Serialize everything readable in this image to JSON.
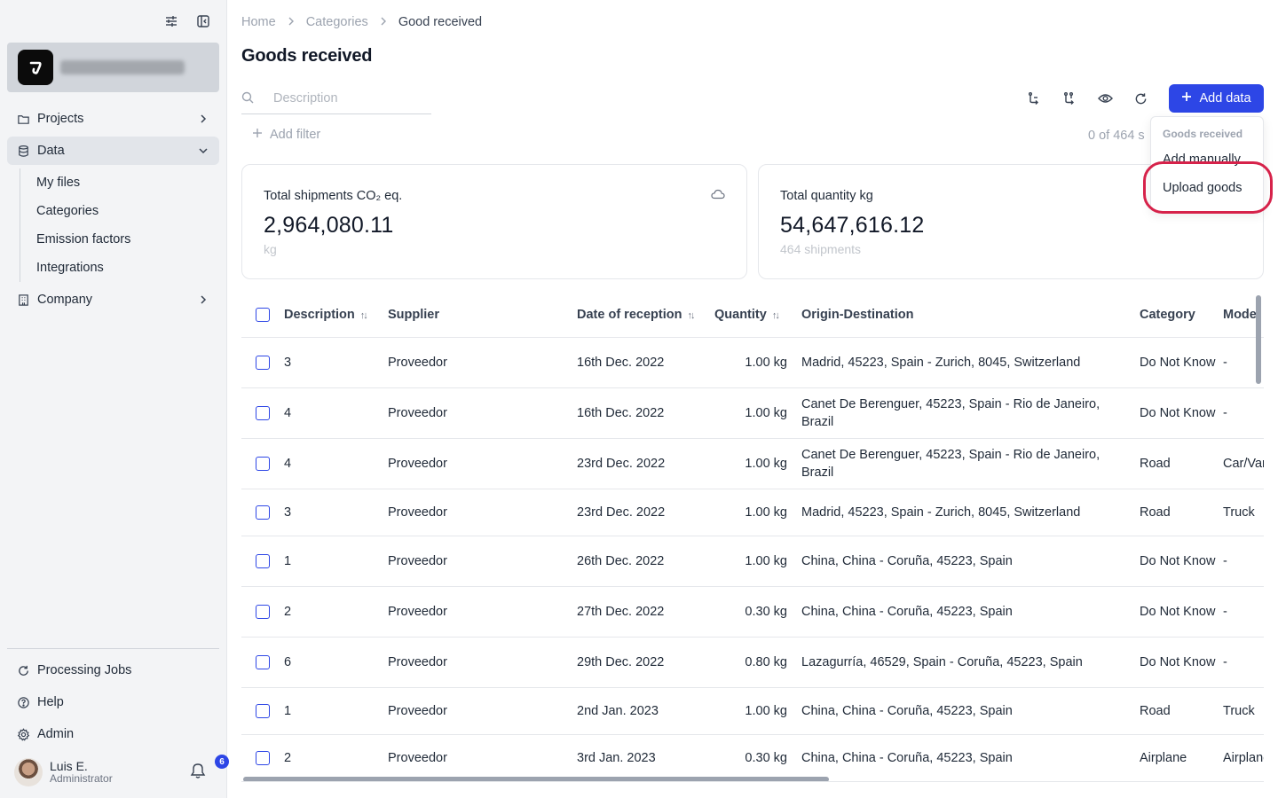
{
  "sidebar": {
    "nav": [
      {
        "label": "Projects",
        "icon": "folder-icon"
      },
      {
        "label": "Data",
        "icon": "database-icon"
      },
      {
        "label": "Company",
        "icon": "building-icon"
      }
    ],
    "data_sub": [
      "My files",
      "Categories",
      "Emission factors",
      "Integrations"
    ],
    "bottom": [
      {
        "label": "Processing Jobs",
        "icon": "refresh-icon"
      },
      {
        "label": "Help",
        "icon": "help-icon"
      },
      {
        "label": "Admin",
        "icon": "gear-icon"
      }
    ],
    "user": {
      "name": "Luis E.",
      "role": "Administrator",
      "notifications": "6"
    }
  },
  "breadcrumb": {
    "items": [
      "Home",
      "Categories",
      "Good received"
    ]
  },
  "page": {
    "title": "Goods received"
  },
  "search": {
    "placeholder": "Description"
  },
  "filters": {
    "add_label": "Add filter",
    "count_text": "0 of 464 s"
  },
  "toolbar": {
    "add_label": "Add data"
  },
  "dropdown": {
    "header": "Goods received",
    "items": [
      "Add manually",
      "Upload goods"
    ]
  },
  "cards": [
    {
      "label": "Total shipments CO₂ eq.",
      "value": "2,964,080.11",
      "sub": "kg"
    },
    {
      "label": "Total quantity kg",
      "value": "54,647,616.12",
      "sub": "464 shipments"
    }
  ],
  "table": {
    "columns": [
      "Description",
      "Supplier",
      "Date of reception",
      "Quantity",
      "Origin-Destination",
      "Category",
      "Mode"
    ],
    "rows": [
      [
        "3",
        "Proveedor",
        "16th Dec. 2022",
        "1.00 kg",
        "Madrid, 45223, Spain - Zurich, 8045, Switzerland",
        "Do Not Know",
        "-"
      ],
      [
        "4",
        "Proveedor",
        "16th Dec. 2022",
        "1.00 kg",
        "Canet De Berenguer, 45223, Spain - Rio de Janeiro, Brazil",
        "Do Not Know",
        "-"
      ],
      [
        "4",
        "Proveedor",
        "23rd Dec. 2022",
        "1.00 kg",
        "Canet De Berenguer, 45223, Spain - Rio de Janeiro, Brazil",
        "Road",
        "Car/Van"
      ],
      [
        "3",
        "Proveedor",
        "23rd Dec. 2022",
        "1.00 kg",
        "Madrid, 45223, Spain - Zurich, 8045, Switzerland",
        "Road",
        "Truck"
      ],
      [
        "1",
        "Proveedor",
        "26th Dec. 2022",
        "1.00 kg",
        "China, China - Coruña, 45223, Spain",
        "Do Not Know",
        "-"
      ],
      [
        "2",
        "Proveedor",
        "27th Dec. 2022",
        "0.30 kg",
        "China, China - Coruña, 45223, Spain",
        "Do Not Know",
        "-"
      ],
      [
        "6",
        "Proveedor",
        "29th Dec. 2022",
        "0.80 kg",
        "Lazagurría, 46529, Spain - Coruña, 45223, Spain",
        "Do Not Know",
        "-"
      ],
      [
        "1",
        "Proveedor",
        "2nd Jan. 2023",
        "1.00 kg",
        "China, China - Coruña, 45223, Spain",
        "Road",
        "Truck"
      ],
      [
        "2",
        "Proveedor",
        "3rd Jan. 2023",
        "0.30 kg",
        "China, China - Coruña, 45223, Spain",
        "Airplane",
        "Airplane"
      ]
    ]
  },
  "colors": {
    "accent": "#2d46e6",
    "highlight": "#d6224a"
  }
}
